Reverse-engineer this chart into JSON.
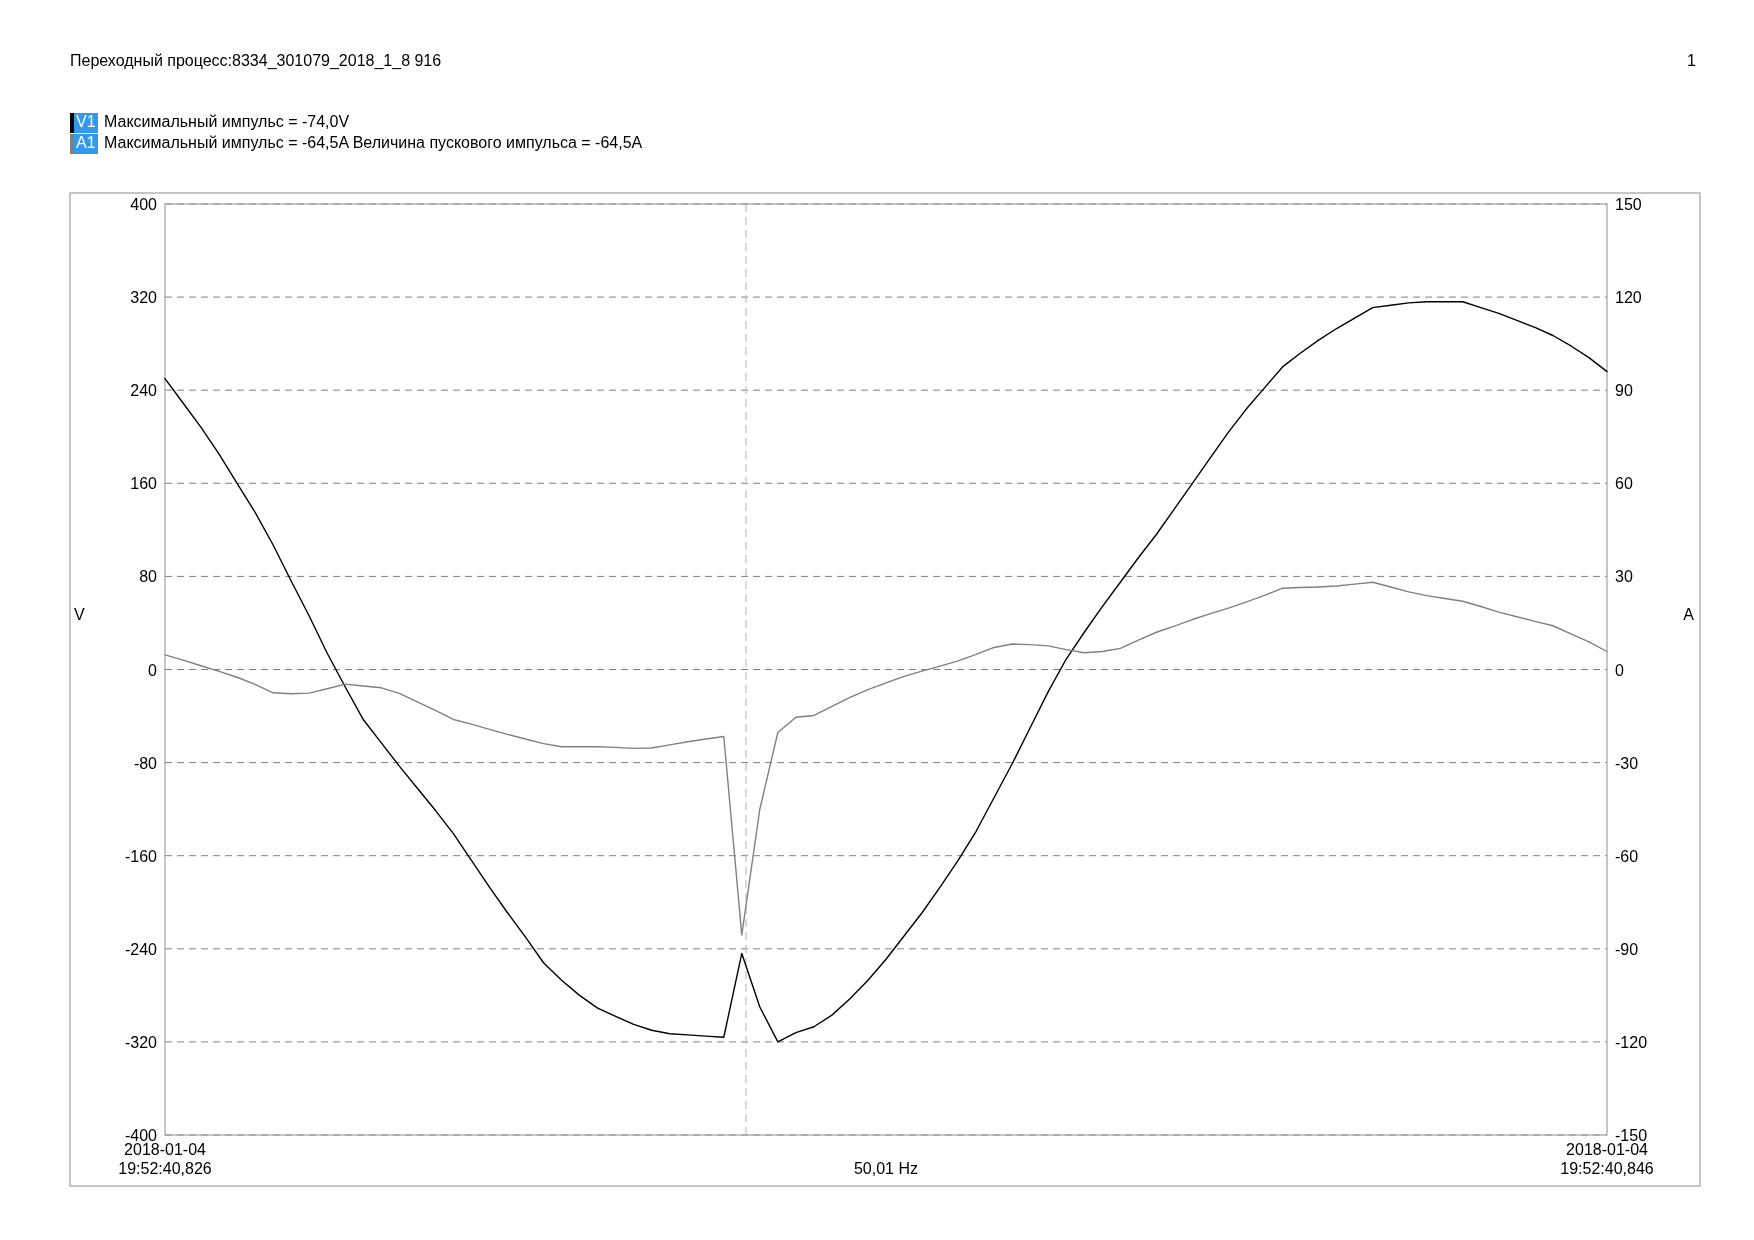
{
  "chart_data": {
    "type": "line",
    "title": "Переходный процесс:8334_301079_2018_1_8 916",
    "xlabel": "50,01 Hz",
    "ylabel": "V",
    "y2label": "A",
    "annotations": [
      "Максимальный импульс = -74,0V",
      "Максимальный импульс = -64,5A Величина пускового импульса = -64,5A",
      "1"
    ],
    "categories": [
      "2018-01-04 19:52:40,826",
      null,
      null,
      null,
      null,
      null,
      null,
      null,
      null,
      null,
      null,
      null,
      null,
      null,
      null,
      null,
      null,
      null,
      null,
      null,
      null,
      null,
      null,
      null,
      null,
      null,
      null,
      null,
      null,
      null,
      null,
      null,
      null,
      null,
      null,
      null,
      null,
      null,
      null,
      null,
      null,
      null,
      null,
      null,
      null,
      null,
      null,
      null,
      null,
      null,
      null,
      null,
      null,
      null,
      null,
      null,
      null,
      null,
      null,
      null,
      null,
      null,
      null,
      null,
      null,
      null,
      null,
      null,
      null,
      null,
      null,
      null,
      null,
      null,
      null,
      null,
      null,
      null,
      null,
      null,
      "2018-01-04 19:52:40,846"
    ],
    "ylim": [
      -400,
      400
    ],
    "yticks": [
      -400,
      -320,
      -240,
      -160,
      -80,
      0,
      80,
      160,
      240,
      320,
      400
    ],
    "y2lim": [
      -150,
      150
    ],
    "y2ticks": [
      -150,
      -120,
      -90,
      -60,
      -30,
      0,
      30,
      60,
      90,
      120,
      150
    ],
    "grid": "y",
    "legend": "top left",
    "line_style": "solid",
    "series": [
      {
        "name": "V1",
        "color": "#000000",
        "values": [
          250,
          229,
          208,
          185,
          160,
          135,
          107,
          76,
          46,
          14,
          -15,
          -43,
          -63,
          -83,
          -102,
          -121,
          -141,
          -164,
          -187,
          -209,
          -230,
          -252,
          -267,
          -280,
          -291,
          -298,
          -305,
          -310,
          -313,
          -314,
          -315,
          -316,
          -244,
          -290,
          -320,
          -312,
          -307,
          -297,
          -283,
          -267,
          -249,
          -229,
          -209,
          -187,
          -164,
          -139,
          -110,
          -81,
          -50,
          -19,
          9,
          32,
          54,
          75,
          96,
          116,
          138,
          160,
          182,
          204,
          224,
          242,
          260,
          272,
          283,
          293,
          302,
          311,
          313,
          315,
          316,
          316,
          316,
          311,
          306,
          300,
          294,
          287,
          278,
          268,
          256
        ]
      },
      {
        "name": "A1",
        "color": "#808080",
        "axis": "y2",
        "values": [
          4.7,
          3,
          1.2,
          -0.6,
          -2.5,
          -4.8,
          -7.5,
          -7.8,
          -7.6,
          -6.2,
          -4.7,
          -5.3,
          -5.9,
          -7.7,
          -10.4,
          -13.2,
          -16.1,
          -17.6,
          -19.3,
          -20.9,
          -22.4,
          -23.9,
          -24.9,
          -24.9,
          -24.9,
          -25.1,
          -25.4,
          -25.3,
          -24.3,
          -23.3,
          -22.4,
          -21.6,
          -85.5,
          -45,
          -20.3,
          -15.4,
          -14.8,
          -11.9,
          -9,
          -6.5,
          -4.3,
          -2.2,
          -0.5,
          1.1,
          2.8,
          4.9,
          7.1,
          8.2,
          8,
          7.6,
          6.4,
          5.4,
          5.8,
          6.8,
          9.5,
          12,
          14,
          16.1,
          18,
          19.8,
          21.8,
          23.9,
          26.2,
          26.4,
          26.6,
          26.9,
          27.5,
          28.1,
          26.6,
          25,
          23.8,
          22.9,
          22,
          20.3,
          18.5,
          17,
          15.5,
          14.1,
          11.5,
          8.9,
          5.8
        ]
      }
    ]
  }
}
